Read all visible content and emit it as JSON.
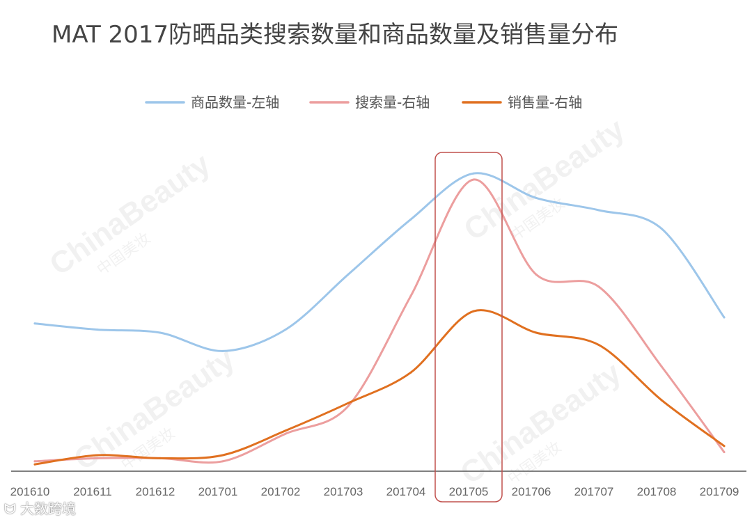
{
  "chart_data": {
    "type": "line",
    "title": "MAT 2017防晒品类搜索数量和商品数量及销售量分布",
    "categories": [
      "201610",
      "201611",
      "201612",
      "201701",
      "201702",
      "201703",
      "201704",
      "201705",
      "201706",
      "201707",
      "201708",
      "201709"
    ],
    "series": [
      {
        "name": "商品数量-左轴",
        "color": "#9DC6EA",
        "values": [
          48,
          46,
          45,
          39,
          46,
          64,
          82,
          97,
          89,
          85,
          79,
          50
        ]
      },
      {
        "name": "搜索量-右轴",
        "color": "#EC9E9E",
        "values": [
          3,
          4,
          4,
          3,
          12,
          21,
          57,
          95,
          64,
          60,
          34,
          6
        ]
      },
      {
        "name": "销售量-右轴",
        "color": "#E07020",
        "values": [
          2,
          5,
          4,
          5,
          13,
          22,
          32,
          52,
          45,
          41,
          23,
          8
        ]
      }
    ],
    "highlight_category": "201705",
    "highlight_color": "#C0504D",
    "ylim": [
      0,
      100
    ],
    "grid": false,
    "legend_position": "top-center"
  },
  "watermark": {
    "main": "ChinaBeauty",
    "sub": "中国美妆"
  },
  "footer": {
    "logo": "大数跨境"
  }
}
